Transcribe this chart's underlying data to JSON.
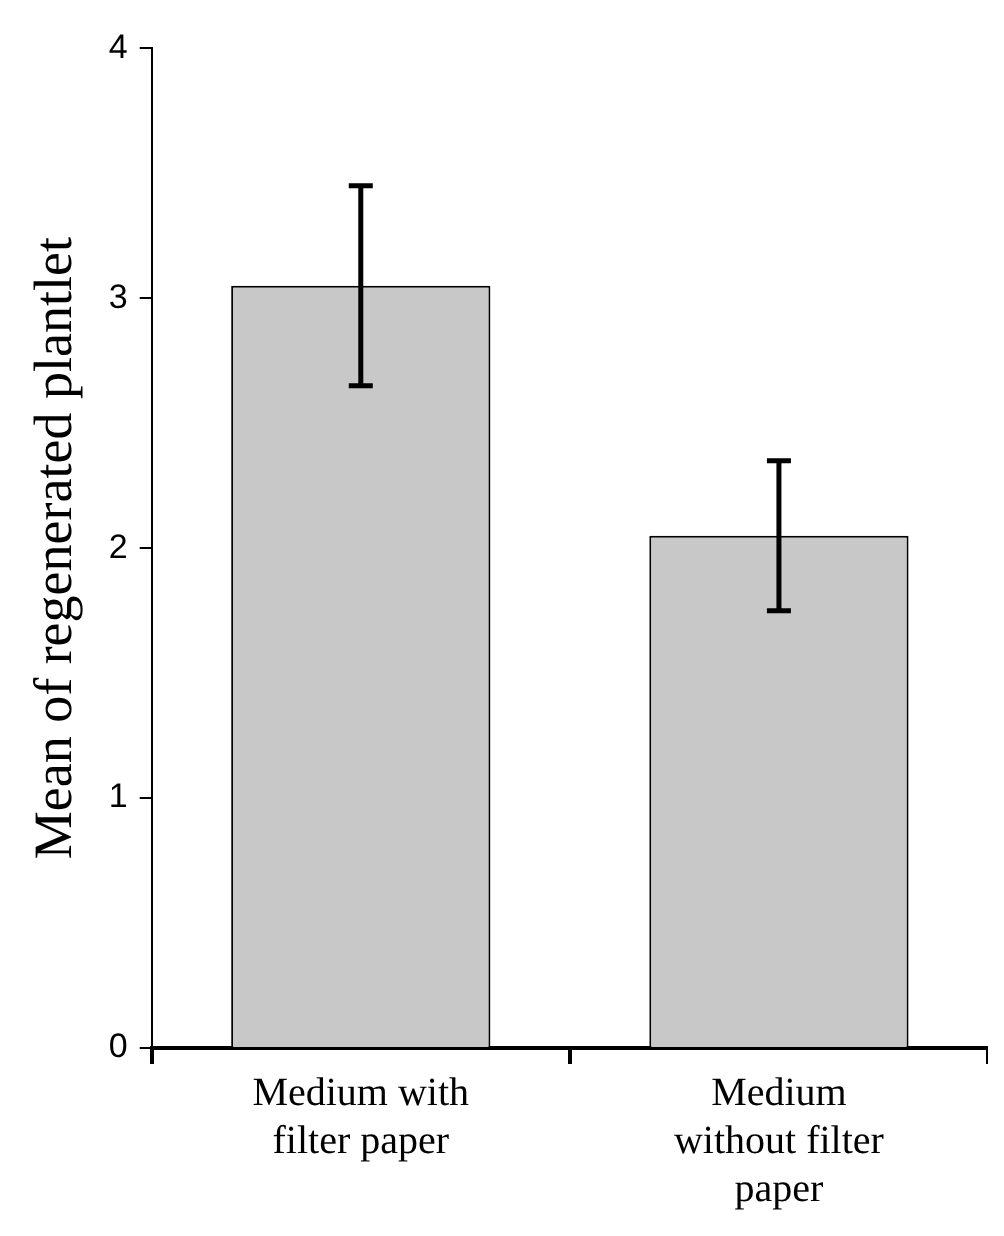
{
  "chart_data": {
    "type": "bar",
    "ylabel": "Mean of regenerated plantlet",
    "categories": [
      "Medium with filter paper",
      "Medium without filter paper"
    ],
    "values": [
      3.05,
      2.05
    ],
    "errors": [
      0.4,
      0.3
    ],
    "color": "#c8c8c8",
    "ylim": [
      0,
      4
    ],
    "yticks": [
      0,
      1,
      2,
      3,
      4
    ],
    "grid": false,
    "legend": false
  }
}
